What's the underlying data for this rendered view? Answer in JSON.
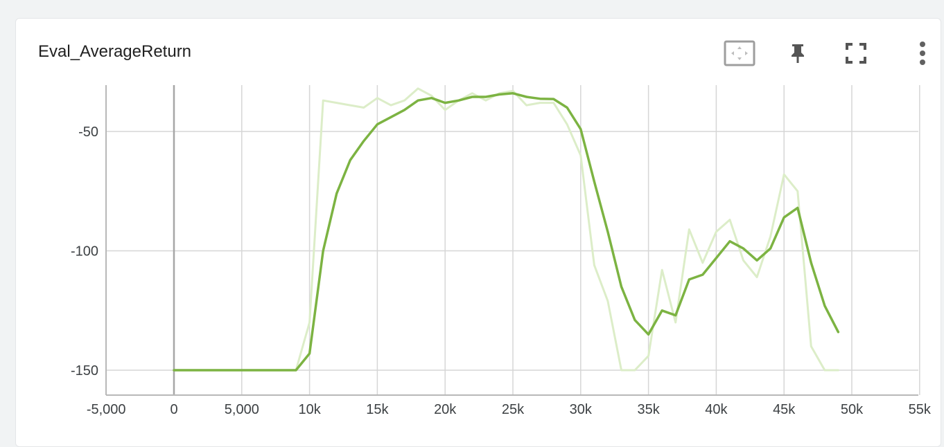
{
  "card": {
    "title": "Eval_AverageReturn"
  },
  "toolbar": {
    "icons": [
      "fit-domain-icon",
      "pin-icon",
      "fullscreen-icon",
      "more-vert-icon"
    ]
  },
  "colors": {
    "smoothed": "#7cb342",
    "raw": "#dcedc8",
    "grid": "#d6d6d6"
  },
  "chart_data": {
    "type": "line",
    "title": "Eval_AverageReturn",
    "xlabel": "",
    "ylabel": "",
    "xlim": [
      -5000,
      55000
    ],
    "ylim": [
      -160,
      -30
    ],
    "x_ticks": [
      {
        "value": -5000,
        "label": "-5,000"
      },
      {
        "value": 0,
        "label": "0"
      },
      {
        "value": 5000,
        "label": "5,000"
      },
      {
        "value": 10000,
        "label": "10k"
      },
      {
        "value": 15000,
        "label": "15k"
      },
      {
        "value": 20000,
        "label": "20k"
      },
      {
        "value": 25000,
        "label": "25k"
      },
      {
        "value": 30000,
        "label": "30k"
      },
      {
        "value": 35000,
        "label": "35k"
      },
      {
        "value": 40000,
        "label": "40k"
      },
      {
        "value": 45000,
        "label": "45k"
      },
      {
        "value": 50000,
        "label": "50k"
      },
      {
        "value": 55000,
        "label": "55k"
      }
    ],
    "y_ticks": [
      {
        "value": -50,
        "label": "-50"
      },
      {
        "value": -100,
        "label": "-100"
      },
      {
        "value": -150,
        "label": "-150"
      }
    ],
    "grid": true,
    "series": [
      {
        "x": [
          0,
          1000,
          2000,
          3000,
          4000,
          5000,
          6000,
          7000,
          8000,
          9000,
          10000,
          11000,
          12000,
          13000,
          14000,
          15000,
          16000,
          17000,
          18000,
          19000,
          20000,
          21000,
          22000,
          23000,
          24000,
          25000,
          26000,
          27000,
          28000,
          29000,
          30000,
          31000,
          32000,
          33000,
          34000,
          35000,
          36000,
          37000,
          38000,
          39000,
          40000,
          41000,
          42000,
          43000,
          44000,
          45000,
          46000,
          47000,
          48000,
          49000
        ],
        "y": [
          -150,
          -150,
          -150,
          -150,
          -150,
          -150,
          -150,
          -150,
          -150,
          -150,
          -130,
          -37,
          -38,
          -39,
          -40,
          -36,
          -39,
          -37,
          -32,
          -35,
          -41,
          -37,
          -34,
          -37,
          -34,
          -33,
          -39,
          -38,
          -38,
          -47,
          -60,
          -106,
          -121,
          -150,
          -150,
          -144,
          -108,
          -130,
          -91,
          -105,
          -92,
          -87,
          -104,
          -111,
          -94,
          -68,
          -75,
          -140,
          -150,
          -150
        ]
      },
      {
        "x": [
          0,
          1000,
          2000,
          3000,
          4000,
          5000,
          6000,
          7000,
          8000,
          9000,
          10000,
          11000,
          12000,
          13000,
          14000,
          15000,
          16000,
          17000,
          18000,
          19000,
          20000,
          21000,
          22000,
          23000,
          24000,
          25000,
          26000,
          27000,
          28000,
          29000,
          30000,
          31000,
          32000,
          33000,
          34000,
          35000,
          36000,
          37000,
          38000,
          39000,
          40000,
          41000,
          42000,
          43000,
          44000,
          45000,
          46000,
          47000,
          48000,
          49000
        ],
        "y": [
          -150,
          -150,
          -150,
          -150,
          -150,
          -150,
          -150,
          -150,
          -150,
          -150,
          -143,
          -100,
          -76,
          -62,
          -54,
          -47,
          -44,
          -41,
          -37,
          -36,
          -38,
          -37,
          -35.5,
          -35.5,
          -34.5,
          -34,
          -35.5,
          -36.3,
          -36.4,
          -40,
          -49,
          -71,
          -92,
          -115,
          -129,
          -135,
          -125,
          -127,
          -112,
          -110,
          -103,
          -96,
          -99,
          -104,
          -99,
          -86,
          -82,
          -105,
          -123,
          -134
        ]
      }
    ]
  }
}
